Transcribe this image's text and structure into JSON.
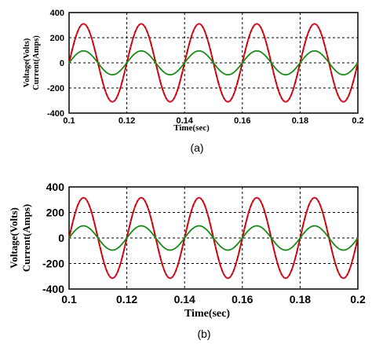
{
  "chart_data": [
    {
      "type": "line",
      "panel_label": "(a)",
      "xlabel": "Time(sec)",
      "ylabel_lines": [
        "Voltage(Volts)",
        "Current(Amps)"
      ],
      "xlim": [
        0.1,
        0.2
      ],
      "ylim": [
        -400,
        400
      ],
      "xticks": [
        0.1,
        0.12,
        0.14,
        0.16,
        0.18,
        0.2
      ],
      "xtick_labels": [
        "0.1",
        "0.12",
        "0.14",
        "0.16",
        "0.18",
        "0.2"
      ],
      "yticks": [
        400,
        200,
        0,
        -200,
        -400
      ],
      "ytick_labels": [
        "400",
        "200",
        "0",
        "-200",
        "-400"
      ],
      "grid": true,
      "series": [
        {
          "kind": "sine",
          "amplitude": 310,
          "frequency": 50,
          "phase": 0,
          "color": "#cc0000",
          "dots_color": "#cc3366"
        },
        {
          "kind": "sine",
          "amplitude": 95,
          "frequency": 50,
          "phase": 0,
          "color": "#1a8a1a"
        }
      ]
    },
    {
      "type": "line",
      "panel_label": "(b)",
      "xlabel": "Time(sec)",
      "ylabel_lines": [
        "Voltage(Volts)",
        "Current(Amps)"
      ],
      "xlim": [
        0.1,
        0.2
      ],
      "ylim": [
        -400,
        400
      ],
      "xticks": [
        0.1,
        0.12,
        0.14,
        0.16,
        0.18,
        0.2
      ],
      "xtick_labels": [
        "0.1",
        "0.12",
        "0.14",
        "0.16",
        "0.18",
        "0.2"
      ],
      "yticks": [
        400,
        200,
        0,
        -200,
        -400
      ],
      "ytick_labels": [
        "400",
        "200",
        "0",
        "-200",
        "-400"
      ],
      "grid": true,
      "series": [
        {
          "kind": "sine",
          "amplitude": 315,
          "frequency": 50,
          "phase": 0,
          "color": "#cc0000",
          "dots_color": "#cc3366"
        },
        {
          "kind": "sine",
          "amplitude": 95,
          "frequency": 50,
          "phase": 0,
          "color": "#1a8a1a"
        }
      ]
    }
  ]
}
